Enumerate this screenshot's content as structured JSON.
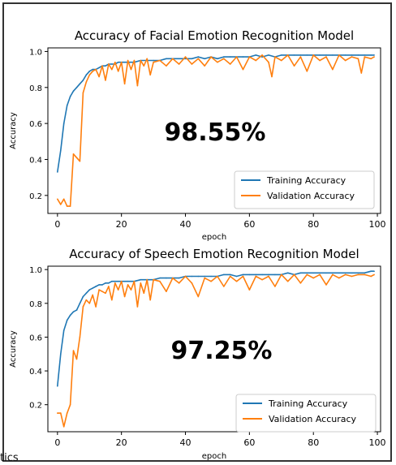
{
  "stray_text": "tics",
  "chart_data": [
    {
      "type": "line",
      "title": "Accuracy of Facial Emotion Recognition Model",
      "xlabel": "epoch",
      "ylabel": "Accuracy",
      "xlim": [
        -3,
        101
      ],
      "ylim": [
        0.1,
        1.02
      ],
      "xticks": [
        0,
        20,
        40,
        60,
        80,
        100
      ],
      "yticks": [
        0.2,
        0.4,
        0.6,
        0.8,
        1.0
      ],
      "grid": false,
      "legend_position": "lower right",
      "annotation": "98.55%",
      "series": [
        {
          "name": "Training Accuracy",
          "color": "#1f77b4",
          "x": [
            0,
            1,
            2,
            3,
            4,
            5,
            6,
            7,
            8,
            9,
            10,
            11,
            12,
            13,
            14,
            15,
            16,
            17,
            18,
            19,
            20,
            22,
            24,
            26,
            28,
            30,
            32,
            34,
            36,
            38,
            40,
            42,
            44,
            46,
            48,
            50,
            52,
            54,
            56,
            58,
            60,
            62,
            64,
            66,
            68,
            70,
            72,
            74,
            76,
            78,
            80,
            82,
            84,
            86,
            88,
            90,
            92,
            94,
            96,
            98,
            99
          ],
          "values": [
            0.33,
            0.45,
            0.6,
            0.7,
            0.75,
            0.78,
            0.8,
            0.82,
            0.84,
            0.87,
            0.89,
            0.9,
            0.9,
            0.91,
            0.92,
            0.92,
            0.93,
            0.93,
            0.93,
            0.94,
            0.94,
            0.94,
            0.94,
            0.95,
            0.95,
            0.95,
            0.95,
            0.96,
            0.96,
            0.96,
            0.96,
            0.96,
            0.97,
            0.96,
            0.97,
            0.96,
            0.97,
            0.97,
            0.97,
            0.97,
            0.97,
            0.98,
            0.97,
            0.98,
            0.97,
            0.98,
            0.98,
            0.98,
            0.98,
            0.98,
            0.98,
            0.98,
            0.98,
            0.98,
            0.98,
            0.98,
            0.98,
            0.98,
            0.98,
            0.98,
            0.98
          ]
        },
        {
          "name": "Validation Accuracy",
          "color": "#ff7f0e",
          "x": [
            0,
            1,
            2,
            3,
            4,
            5,
            6,
            7,
            8,
            9,
            10,
            11,
            12,
            13,
            14,
            15,
            16,
            17,
            18,
            19,
            20,
            21,
            22,
            23,
            24,
            25,
            26,
            27,
            28,
            29,
            30,
            32,
            34,
            36,
            38,
            40,
            42,
            44,
            46,
            48,
            50,
            52,
            54,
            56,
            58,
            60,
            62,
            64,
            66,
            67,
            68,
            70,
            72,
            74,
            76,
            78,
            80,
            82,
            84,
            86,
            88,
            90,
            92,
            94,
            95,
            96,
            98,
            99
          ],
          "values": [
            0.18,
            0.15,
            0.18,
            0.14,
            0.14,
            0.43,
            0.41,
            0.39,
            0.77,
            0.83,
            0.87,
            0.89,
            0.9,
            0.86,
            0.92,
            0.84,
            0.93,
            0.9,
            0.94,
            0.89,
            0.94,
            0.82,
            0.95,
            0.9,
            0.95,
            0.81,
            0.95,
            0.92,
            0.96,
            0.87,
            0.94,
            0.95,
            0.92,
            0.96,
            0.93,
            0.97,
            0.93,
            0.96,
            0.92,
            0.97,
            0.94,
            0.96,
            0.93,
            0.97,
            0.9,
            0.97,
            0.95,
            0.98,
            0.94,
            0.86,
            0.97,
            0.95,
            0.98,
            0.92,
            0.97,
            0.89,
            0.98,
            0.95,
            0.97,
            0.9,
            0.98,
            0.95,
            0.97,
            0.96,
            0.88,
            0.97,
            0.96,
            0.97
          ]
        }
      ]
    },
    {
      "type": "line",
      "title": "Accuracy of Speech Emotion Recognition Model",
      "xlabel": "epoch",
      "ylabel": "Accuracy",
      "xlim": [
        -3,
        101
      ],
      "ylim": [
        0.04,
        1.02
      ],
      "xticks": [
        0,
        20,
        40,
        60,
        80,
        100
      ],
      "yticks": [
        0.2,
        0.4,
        0.6,
        0.8,
        1.0
      ],
      "grid": false,
      "legend_position": "lower right",
      "annotation": "97.25%",
      "series": [
        {
          "name": "Training Accuracy",
          "color": "#1f77b4",
          "x": [
            0,
            1,
            2,
            3,
            4,
            5,
            6,
            7,
            8,
            9,
            10,
            11,
            12,
            13,
            14,
            15,
            16,
            17,
            18,
            19,
            20,
            22,
            24,
            26,
            28,
            30,
            32,
            34,
            36,
            38,
            40,
            42,
            44,
            46,
            48,
            50,
            52,
            54,
            56,
            58,
            60,
            62,
            64,
            66,
            68,
            70,
            72,
            74,
            76,
            78,
            80,
            82,
            84,
            86,
            88,
            90,
            92,
            94,
            96,
            98,
            99
          ],
          "values": [
            0.31,
            0.5,
            0.64,
            0.7,
            0.73,
            0.75,
            0.76,
            0.8,
            0.84,
            0.86,
            0.88,
            0.89,
            0.9,
            0.91,
            0.91,
            0.92,
            0.92,
            0.93,
            0.93,
            0.93,
            0.93,
            0.93,
            0.93,
            0.94,
            0.94,
            0.94,
            0.95,
            0.95,
            0.95,
            0.95,
            0.96,
            0.96,
            0.96,
            0.96,
            0.96,
            0.96,
            0.97,
            0.97,
            0.96,
            0.97,
            0.97,
            0.97,
            0.97,
            0.97,
            0.97,
            0.97,
            0.98,
            0.97,
            0.98,
            0.98,
            0.98,
            0.98,
            0.98,
            0.98,
            0.98,
            0.98,
            0.98,
            0.98,
            0.98,
            0.99,
            0.99
          ]
        },
        {
          "name": "Validation Accuracy",
          "color": "#ff7f0e",
          "x": [
            0,
            1,
            2,
            3,
            4,
            5,
            6,
            7,
            8,
            9,
            10,
            11,
            12,
            13,
            14,
            15,
            16,
            17,
            18,
            19,
            20,
            21,
            22,
            23,
            24,
            25,
            26,
            27,
            28,
            29,
            30,
            32,
            34,
            36,
            38,
            40,
            42,
            44,
            46,
            48,
            50,
            52,
            54,
            56,
            58,
            60,
            62,
            64,
            66,
            68,
            70,
            72,
            74,
            76,
            78,
            80,
            82,
            84,
            86,
            88,
            90,
            92,
            94,
            96,
            98,
            99
          ],
          "values": [
            0.15,
            0.15,
            0.07,
            0.15,
            0.2,
            0.52,
            0.47,
            0.6,
            0.78,
            0.82,
            0.8,
            0.85,
            0.78,
            0.88,
            0.87,
            0.86,
            0.9,
            0.82,
            0.92,
            0.88,
            0.93,
            0.84,
            0.91,
            0.88,
            0.93,
            0.78,
            0.92,
            0.86,
            0.94,
            0.82,
            0.94,
            0.93,
            0.87,
            0.95,
            0.92,
            0.96,
            0.92,
            0.84,
            0.95,
            0.93,
            0.96,
            0.9,
            0.96,
            0.93,
            0.96,
            0.88,
            0.96,
            0.94,
            0.96,
            0.9,
            0.97,
            0.93,
            0.97,
            0.92,
            0.97,
            0.95,
            0.97,
            0.91,
            0.97,
            0.95,
            0.97,
            0.96,
            0.97,
            0.97,
            0.96,
            0.97
          ]
        }
      ]
    }
  ]
}
